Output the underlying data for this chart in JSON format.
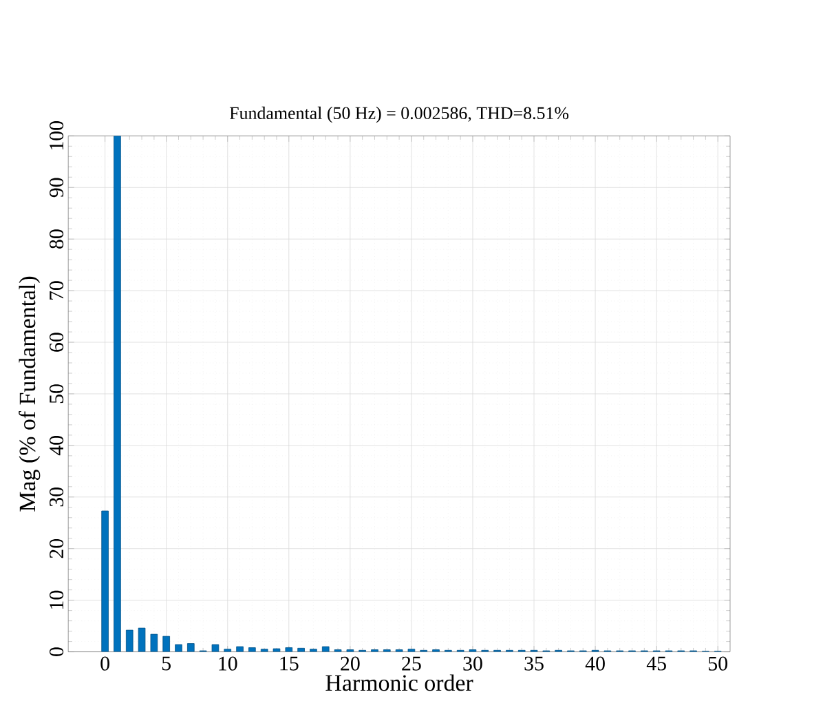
{
  "chart_data": {
    "type": "bar",
    "title": "Fundamental (50 Hz) = 0.002586, THD=8.51%",
    "xlabel": "Harmonic order",
    "ylabel": "Mag (% of Fundamental)",
    "x": [
      0,
      1,
      2,
      3,
      4,
      5,
      6,
      7,
      8,
      9,
      10,
      11,
      12,
      13,
      14,
      15,
      16,
      17,
      18,
      19,
      20,
      21,
      22,
      23,
      24,
      25,
      26,
      27,
      28,
      29,
      30,
      31,
      32,
      33,
      34,
      35,
      36,
      37,
      38,
      39,
      40,
      41,
      42,
      43,
      44,
      45,
      46,
      47,
      48,
      49,
      50
    ],
    "values": [
      27.3,
      100,
      4.2,
      4.6,
      3.4,
      3.0,
      1.4,
      1.6,
      0.2,
      1.4,
      0.5,
      1.0,
      0.8,
      0.5,
      0.6,
      0.8,
      0.7,
      0.5,
      1.0,
      0.4,
      0.4,
      0.3,
      0.4,
      0.4,
      0.4,
      0.5,
      0.3,
      0.4,
      0.3,
      0.3,
      0.4,
      0.3,
      0.3,
      0.3,
      0.3,
      0.3,
      0.2,
      0.3,
      0.2,
      0.2,
      0.3,
      0.2,
      0.2,
      0.2,
      0.2,
      0.2,
      0.2,
      0.2,
      0.2,
      0.1,
      0.1
    ],
    "color": "#0072bd",
    "xlim": [
      -3,
      51
    ],
    "ylim": [
      0,
      100
    ],
    "xticks": [
      0,
      5,
      10,
      15,
      20,
      25,
      30,
      35,
      40,
      45,
      50
    ],
    "yticks": [
      0,
      10,
      20,
      30,
      40,
      50,
      60,
      70,
      80,
      90,
      100
    ],
    "grid": true
  }
}
